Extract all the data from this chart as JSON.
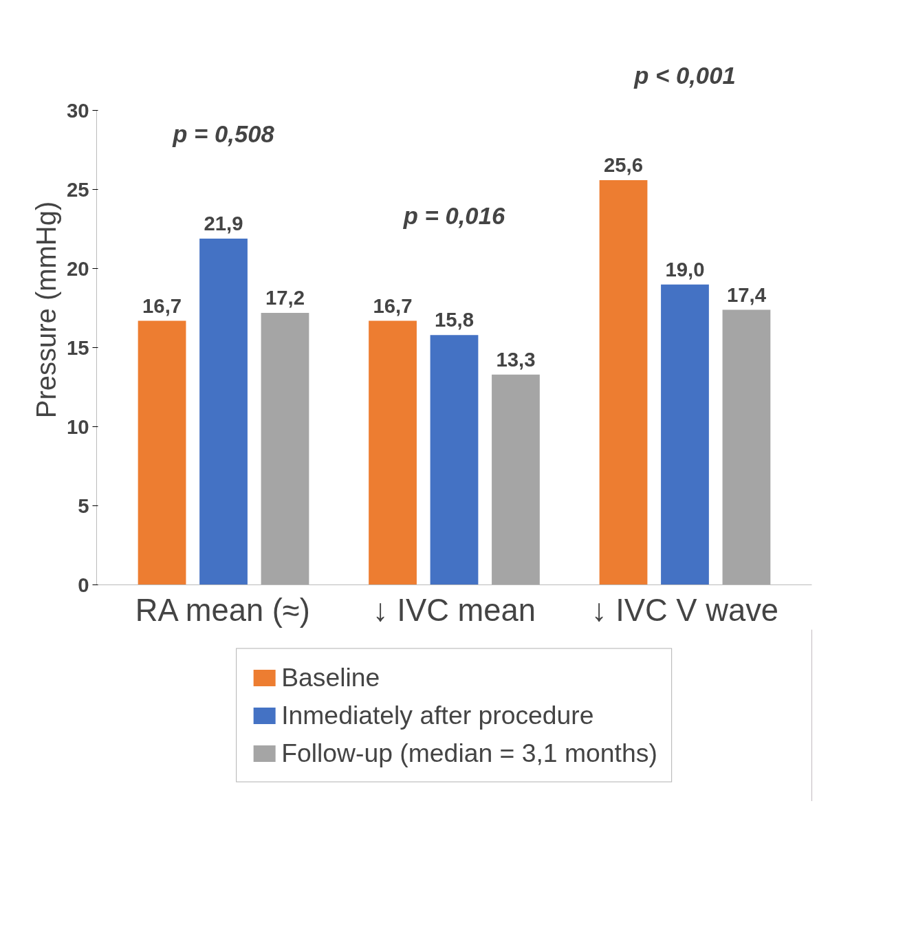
{
  "chart_data": {
    "type": "bar",
    "categories": [
      "RA mean (≈)",
      "↓ IVC mean",
      "↓ IVC V wave"
    ],
    "ylabel": "Pressure (mmHg)",
    "ylim": [
      0,
      30
    ],
    "yticks": [
      0,
      5,
      10,
      15,
      20,
      25,
      30
    ],
    "grid": false,
    "legend": "bottom",
    "series": [
      {
        "name": "Baseline",
        "color": "#ed7d31",
        "values": [
          16.7,
          16.7,
          25.6
        ],
        "value_labels": [
          "16,7",
          "16,7",
          "25,6"
        ]
      },
      {
        "name": "Inmediately after procedure",
        "color": "#4472c4",
        "values": [
          21.9,
          15.8,
          19.0
        ],
        "value_labels": [
          "21,9",
          "15,8",
          "19,0"
        ]
      },
      {
        "name": "Follow-up (median = 3,1 months)",
        "color": "#a5a5a5",
        "values": [
          17.2,
          13.3,
          17.4
        ],
        "value_labels": [
          "17,2",
          "13,3",
          "17,4"
        ]
      }
    ],
    "annotations": [
      "p = 0,508",
      "p = 0,016",
      "p < 0,001"
    ]
  }
}
